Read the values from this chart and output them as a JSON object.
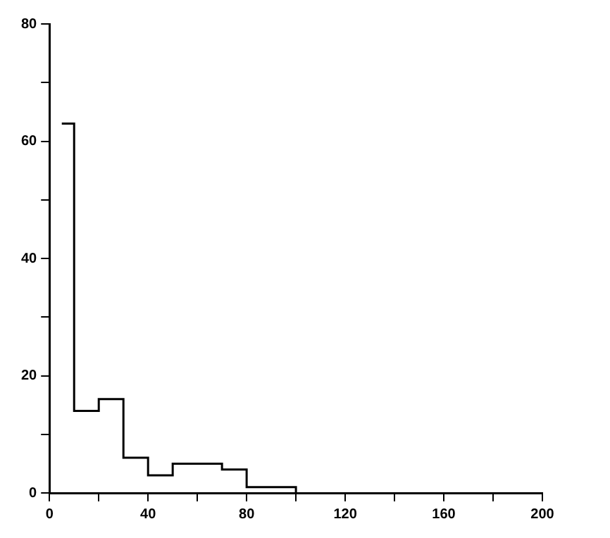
{
  "chart_data": {
    "type": "histogram",
    "bins": [
      5,
      10,
      20,
      30,
      40,
      50,
      70,
      80,
      100
    ],
    "values": [
      63,
      14,
      16,
      6,
      3,
      5,
      4,
      1
    ],
    "color": "#000000",
    "xlim": [
      0,
      200
    ],
    "ylim": [
      0,
      80
    ],
    "xticks": [
      0,
      {
        "value": 20,
        "label": null
      },
      40,
      {
        "value": 60,
        "label": null
      },
      80,
      {
        "value": 100,
        "label": null
      },
      120,
      {
        "value": 140,
        "label": null
      },
      160,
      {
        "value": 180,
        "label": null
      },
      200
    ],
    "yticks": [
      0,
      {
        "value": 10,
        "label": null
      },
      20,
      {
        "value": 30,
        "label": null
      },
      40,
      {
        "value": 50,
        "label": null
      },
      60,
      {
        "value": 70,
        "label": null
      },
      80
    ],
    "grid": false,
    "legend": false
  }
}
